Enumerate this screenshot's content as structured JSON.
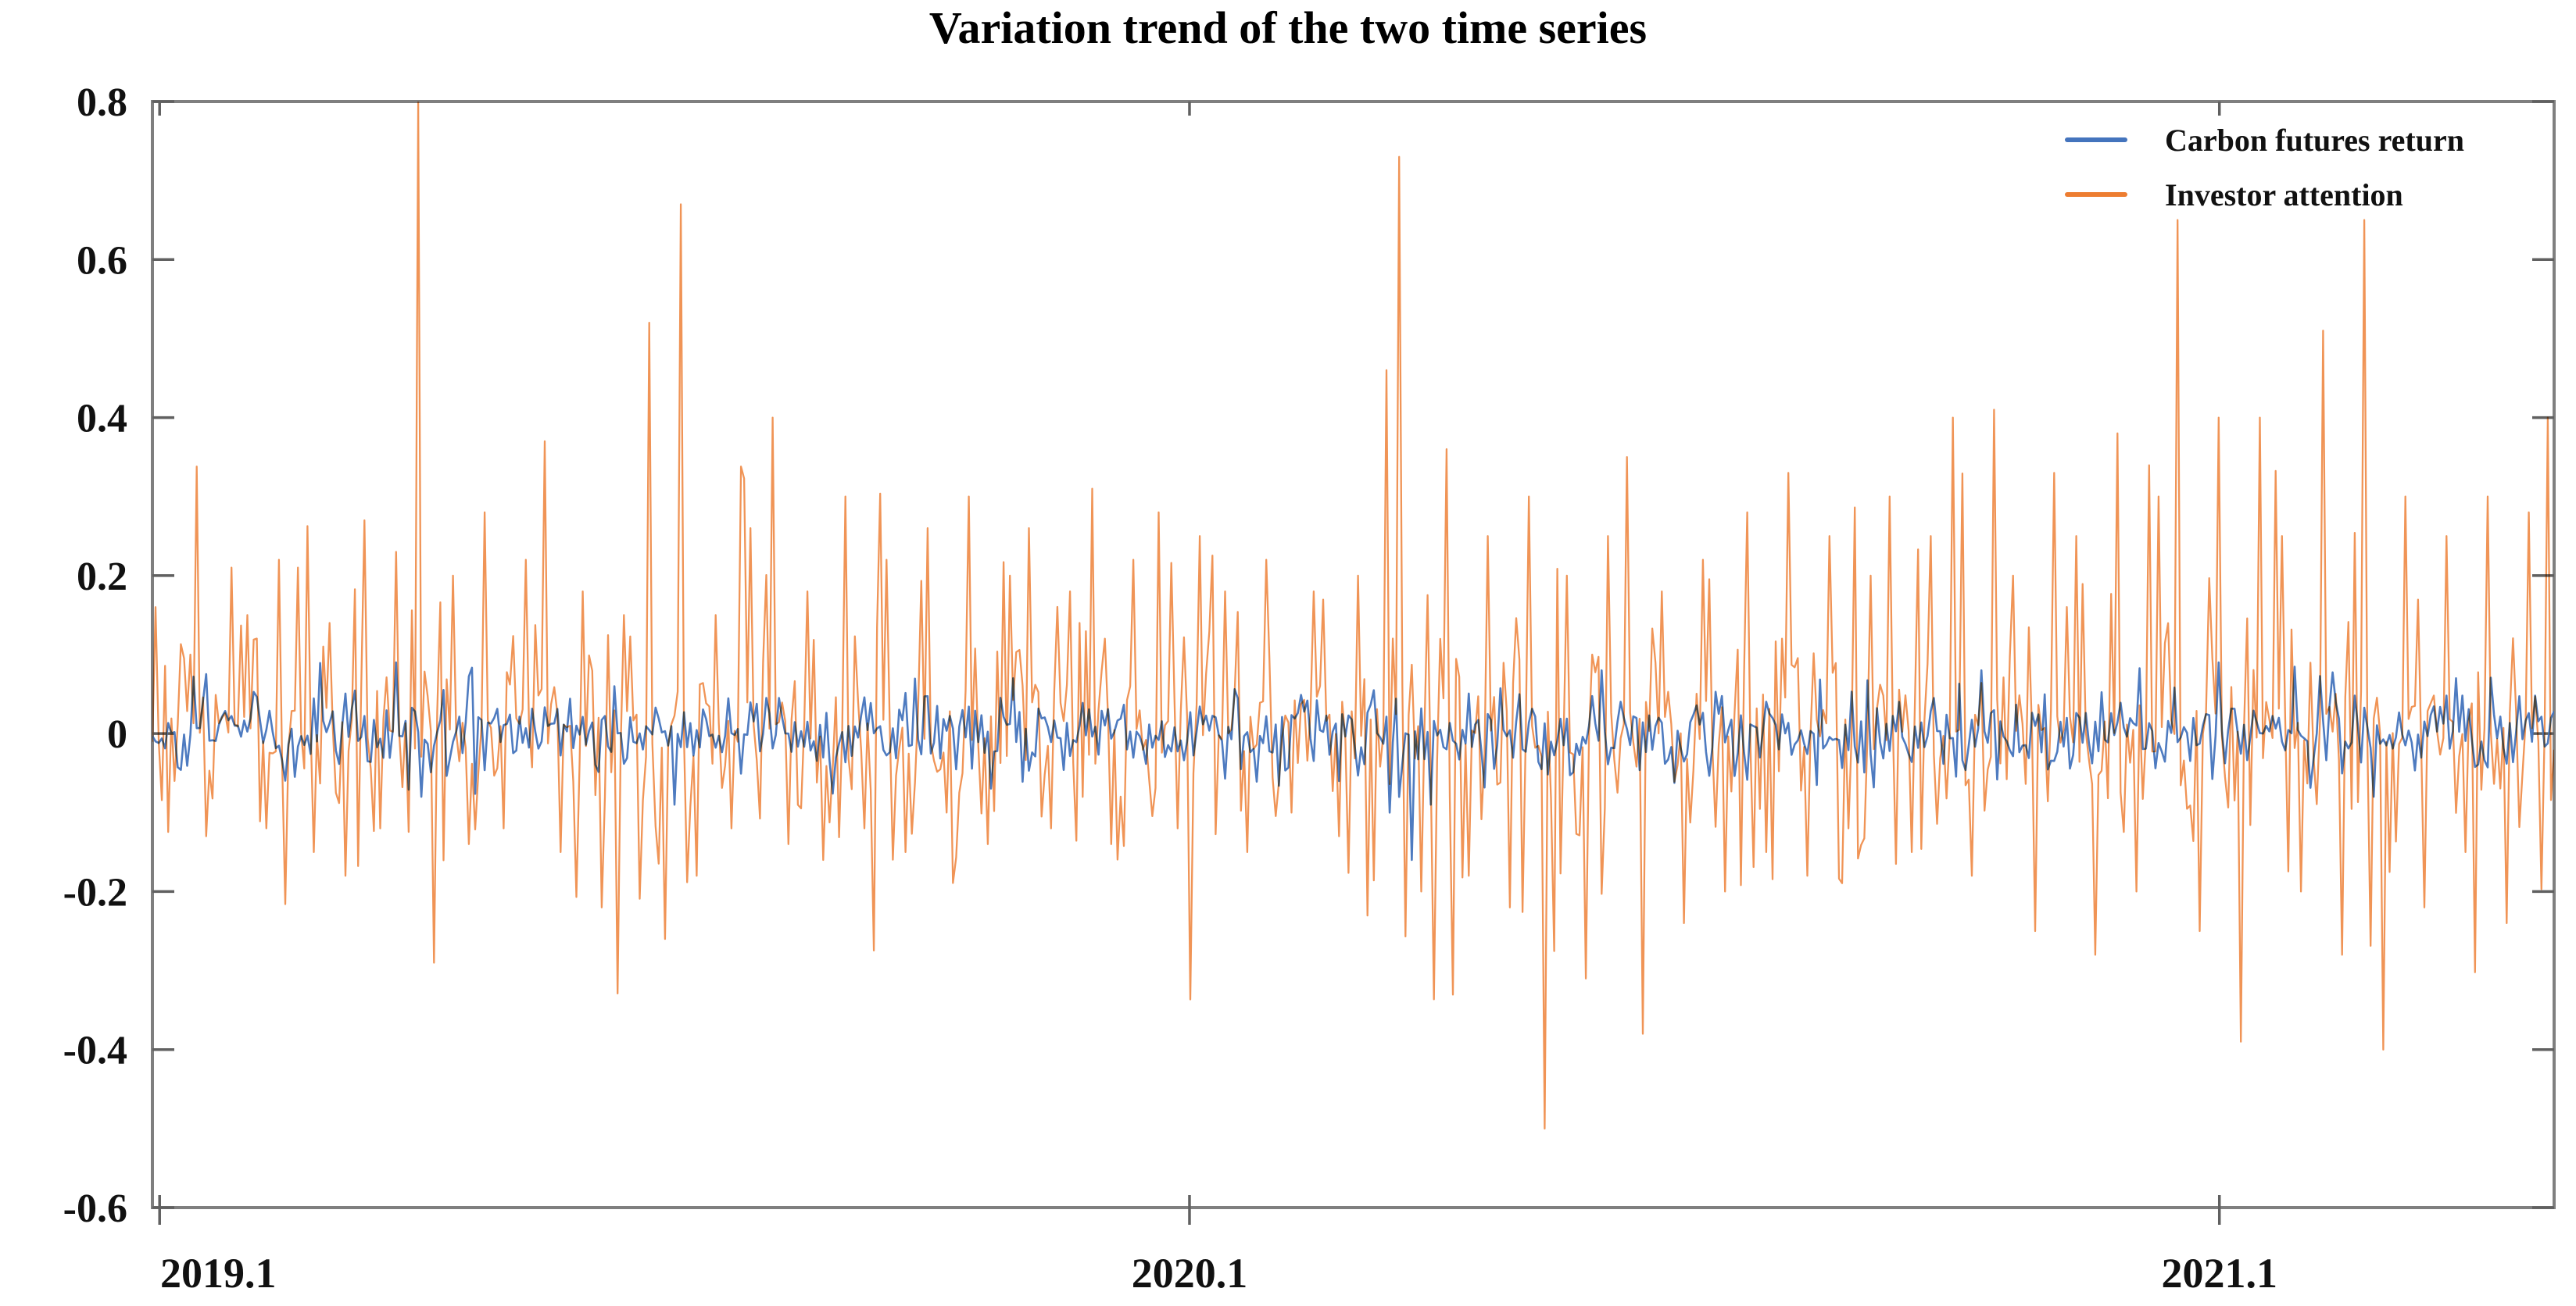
{
  "title": "Variation trend of the two time series",
  "chart_data": {
    "type": "line",
    "title": "Variation trend of the two time series",
    "xlabel": "",
    "ylabel": "",
    "grid": false,
    "legend_position": "top-right",
    "xlim": [
      2019.093,
      2021.425
    ],
    "ylim": [
      -0.6,
      0.8
    ],
    "x_axis": {
      "tick_values": [
        2019.1,
        2020.1,
        2021.1
      ],
      "tick_labels": [
        "2019.1",
        "2020.1",
        "2021.1"
      ]
    },
    "y_axis": {
      "tick_values": [
        0.8,
        0.6,
        0.4,
        0.2,
        0,
        -0.2,
        -0.4,
        -0.6
      ],
      "tick_labels": [
        "0.8",
        "0.6",
        "0.4",
        "0.2",
        "0",
        "-0.2",
        "-0.4",
        "-0.6"
      ]
    },
    "frame_color": "#7f7f7f",
    "tick_color": "#606060",
    "label_color": "#111111",
    "n_points": 760,
    "series": [
      {
        "name": "Carbon futures return",
        "color": "#4474bd",
        "seed": 21,
        "sigma": 0.024,
        "spike_prob": 0.1,
        "spike_min": 0.045,
        "spike_max": 0.095,
        "positive_bias": 0.5,
        "noise_clip": [
          -0.11,
          0.1
        ],
        "anchor_points": [
          [
            2019.33,
            0.09
          ],
          [
            2019.355,
            -0.08
          ],
          [
            2019.6,
            -0.09
          ],
          [
            2019.93,
            0.07
          ],
          [
            2020.295,
            -0.1
          ],
          [
            2020.315,
            -0.16
          ],
          [
            2020.335,
            -0.09
          ],
          [
            2020.5,
            0.08
          ],
          [
            2020.87,
            0.08
          ],
          [
            2021.1,
            0.09
          ],
          [
            2021.25,
            -0.08
          ],
          [
            2021.33,
            0.07
          ]
        ]
      },
      {
        "name": "Investor attention",
        "color": "#ed7d31",
        "seed": 7,
        "sigma": 0.075,
        "spike_prob": 0.16,
        "spike_min": 0.12,
        "spike_max": 0.34,
        "positive_bias": 0.64,
        "noise_clip": [
          -0.34,
          0.42
        ],
        "anchor_points": [
          [
            2019.096,
            0.16
          ],
          [
            2019.115,
            -0.06
          ],
          [
            2019.13,
            0.1
          ],
          [
            2019.145,
            -0.13
          ],
          [
            2019.17,
            0.21
          ],
          [
            2019.185,
            0.15
          ],
          [
            2019.205,
            -0.12
          ],
          [
            2019.215,
            0.22
          ],
          [
            2019.235,
            0.21
          ],
          [
            2019.25,
            -0.15
          ],
          [
            2019.265,
            0.14
          ],
          [
            2019.28,
            -0.18
          ],
          [
            2019.3,
            0.27
          ],
          [
            2019.315,
            -0.12
          ],
          [
            2019.33,
            0.23
          ],
          [
            2019.35,
            0.8
          ],
          [
            2019.365,
            -0.29
          ],
          [
            2019.385,
            0.2
          ],
          [
            2019.4,
            -0.14
          ],
          [
            2019.415,
            0.28
          ],
          [
            2019.435,
            -0.12
          ],
          [
            2019.455,
            0.22
          ],
          [
            2019.475,
            0.37
          ],
          [
            2019.49,
            -0.15
          ],
          [
            2019.51,
            0.18
          ],
          [
            2019.53,
            -0.22
          ],
          [
            2019.55,
            0.15
          ],
          [
            2019.575,
            0.52
          ],
          [
            2019.59,
            -0.26
          ],
          [
            2019.605,
            0.67
          ],
          [
            2019.62,
            -0.18
          ],
          [
            2019.64,
            0.15
          ],
          [
            2019.655,
            -0.12
          ],
          [
            2019.675,
            0.26
          ],
          [
            2019.695,
            0.4
          ],
          [
            2019.71,
            -0.14
          ],
          [
            2019.73,
            0.18
          ],
          [
            2019.745,
            -0.16
          ],
          [
            2019.765,
            0.3
          ],
          [
            2019.785,
            -0.12
          ],
          [
            2019.805,
            0.22
          ],
          [
            2019.825,
            -0.15
          ],
          [
            2019.845,
            0.26
          ],
          [
            2019.865,
            -0.1
          ],
          [
            2019.885,
            0.3
          ],
          [
            2019.905,
            -0.14
          ],
          [
            2019.925,
            0.2
          ],
          [
            2019.945,
            0.26
          ],
          [
            2019.965,
            -0.12
          ],
          [
            2019.985,
            0.18
          ],
          [
            2020.005,
            0.31
          ],
          [
            2020.025,
            -0.14
          ],
          [
            2020.045,
            0.22
          ],
          [
            2020.07,
            0.28
          ],
          [
            2020.09,
            -0.12
          ],
          [
            2020.11,
            0.25
          ],
          [
            2020.135,
            0.18
          ],
          [
            2020.155,
            -0.15
          ],
          [
            2020.175,
            0.22
          ],
          [
            2020.2,
            -0.1
          ],
          [
            2020.22,
            0.18
          ],
          [
            2020.245,
            -0.13
          ],
          [
            2020.265,
            0.2
          ],
          [
            2020.29,
            0.46
          ],
          [
            2020.305,
            0.73
          ],
          [
            2020.325,
            -0.2
          ],
          [
            2020.35,
            0.36
          ],
          [
            2020.37,
            -0.18
          ],
          [
            2020.39,
            0.25
          ],
          [
            2020.41,
            -0.22
          ],
          [
            2020.43,
            0.3
          ],
          [
            2020.445,
            -0.5
          ],
          [
            2020.465,
            0.2
          ],
          [
            2020.485,
            -0.31
          ],
          [
            2020.505,
            0.25
          ],
          [
            2020.525,
            0.35
          ],
          [
            2020.54,
            -0.38
          ],
          [
            2020.56,
            0.18
          ],
          [
            2020.58,
            -0.24
          ],
          [
            2020.6,
            0.22
          ],
          [
            2020.62,
            -0.2
          ],
          [
            2020.64,
            0.28
          ],
          [
            2020.66,
            -0.15
          ],
          [
            2020.68,
            0.33
          ],
          [
            2020.7,
            -0.18
          ],
          [
            2020.72,
            0.25
          ],
          [
            2020.74,
            -0.12
          ],
          [
            2020.76,
            0.2
          ],
          [
            2020.78,
            0.3
          ],
          [
            2020.8,
            -0.15
          ],
          [
            2020.82,
            0.25
          ],
          [
            2020.84,
            0.4
          ],
          [
            2020.86,
            -0.18
          ],
          [
            2020.88,
            0.41
          ],
          [
            2020.9,
            0.2
          ],
          [
            2020.92,
            -0.25
          ],
          [
            2020.94,
            0.33
          ],
          [
            2020.96,
            0.25
          ],
          [
            2020.98,
            -0.28
          ],
          [
            2021.0,
            0.38
          ],
          [
            2021.02,
            -0.2
          ],
          [
            2021.04,
            0.3
          ],
          [
            2021.06,
            0.65
          ],
          [
            2021.08,
            -0.25
          ],
          [
            2021.1,
            0.4
          ],
          [
            2021.12,
            -0.39
          ],
          [
            2021.14,
            0.4
          ],
          [
            2021.16,
            0.25
          ],
          [
            2021.18,
            -0.2
          ],
          [
            2021.2,
            0.51
          ],
          [
            2021.22,
            -0.28
          ],
          [
            2021.24,
            0.65
          ],
          [
            2021.26,
            -0.4
          ],
          [
            2021.28,
            0.3
          ],
          [
            2021.3,
            -0.22
          ],
          [
            2021.32,
            0.25
          ],
          [
            2021.34,
            -0.15
          ],
          [
            2021.36,
            0.3
          ],
          [
            2021.38,
            -0.24
          ],
          [
            2021.4,
            0.28
          ],
          [
            2021.42,
            0.4
          ]
        ]
      }
    ]
  }
}
